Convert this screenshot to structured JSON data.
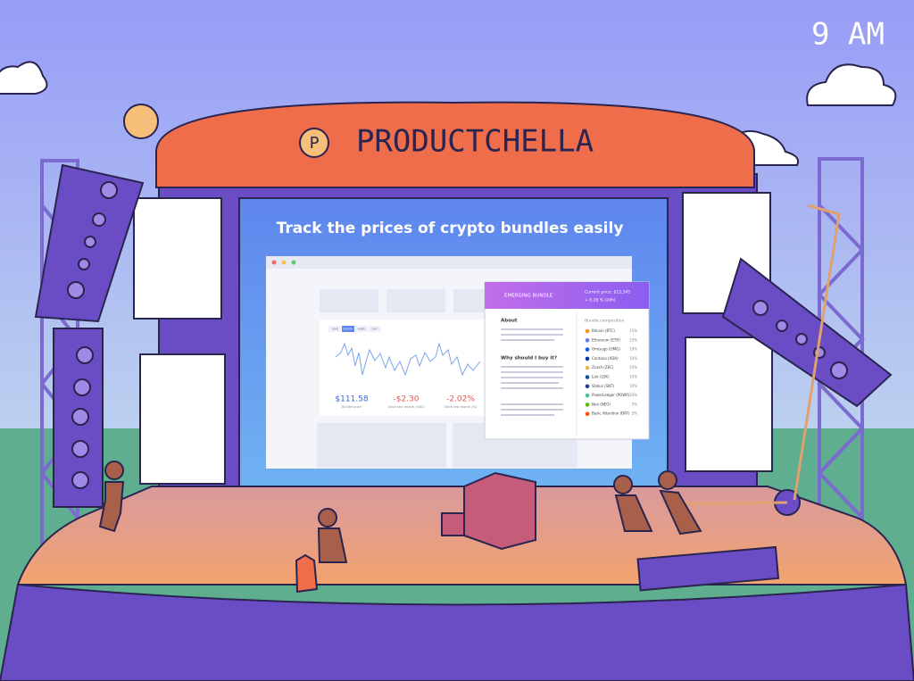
{
  "clock": "9 AM",
  "banner": {
    "logo": "P",
    "title": "PRODUCTCHELLA"
  },
  "screen": {
    "headline": "Track the prices of crypto bundles easily",
    "tabs": [
      "YEAR",
      "MONTH",
      "WEEK",
      "DAY"
    ],
    "stats": [
      {
        "value": "$111.58",
        "label": "Bundle price"
      },
      {
        "value": "-$2.30",
        "label": "Since last month (USD)"
      },
      {
        "value": "-2.02%",
        "label": "Since last month (%)"
      }
    ],
    "panel": {
      "name": "EMERGING BUNDLE",
      "price": "Current price: $12,345",
      "change": "+ 0.28 % (24h)",
      "about_title": "About",
      "why_title": "Why should I buy it?",
      "composition_title": "Bundle composition",
      "coins": [
        {
          "name": "Bitcoin (BTC)",
          "share": "15%"
        },
        {
          "name": "Ethereum (ETH)",
          "share": "15%"
        },
        {
          "name": "Omisego (OMG)",
          "share": "10%"
        },
        {
          "name": "Cardano (ADA)",
          "share": "10%"
        },
        {
          "name": "Zcash (ZEC)",
          "share": "10%"
        },
        {
          "name": "Lisk (LSK)",
          "share": "10%"
        },
        {
          "name": "Status (SNT)",
          "share": "10%"
        },
        {
          "name": "PowerLedger (POWR)",
          "share": "10%"
        },
        {
          "name": "Neo (NEO)",
          "share": "5%"
        },
        {
          "name": "Basic Attention (BAT)",
          "share": "5%"
        }
      ]
    }
  }
}
